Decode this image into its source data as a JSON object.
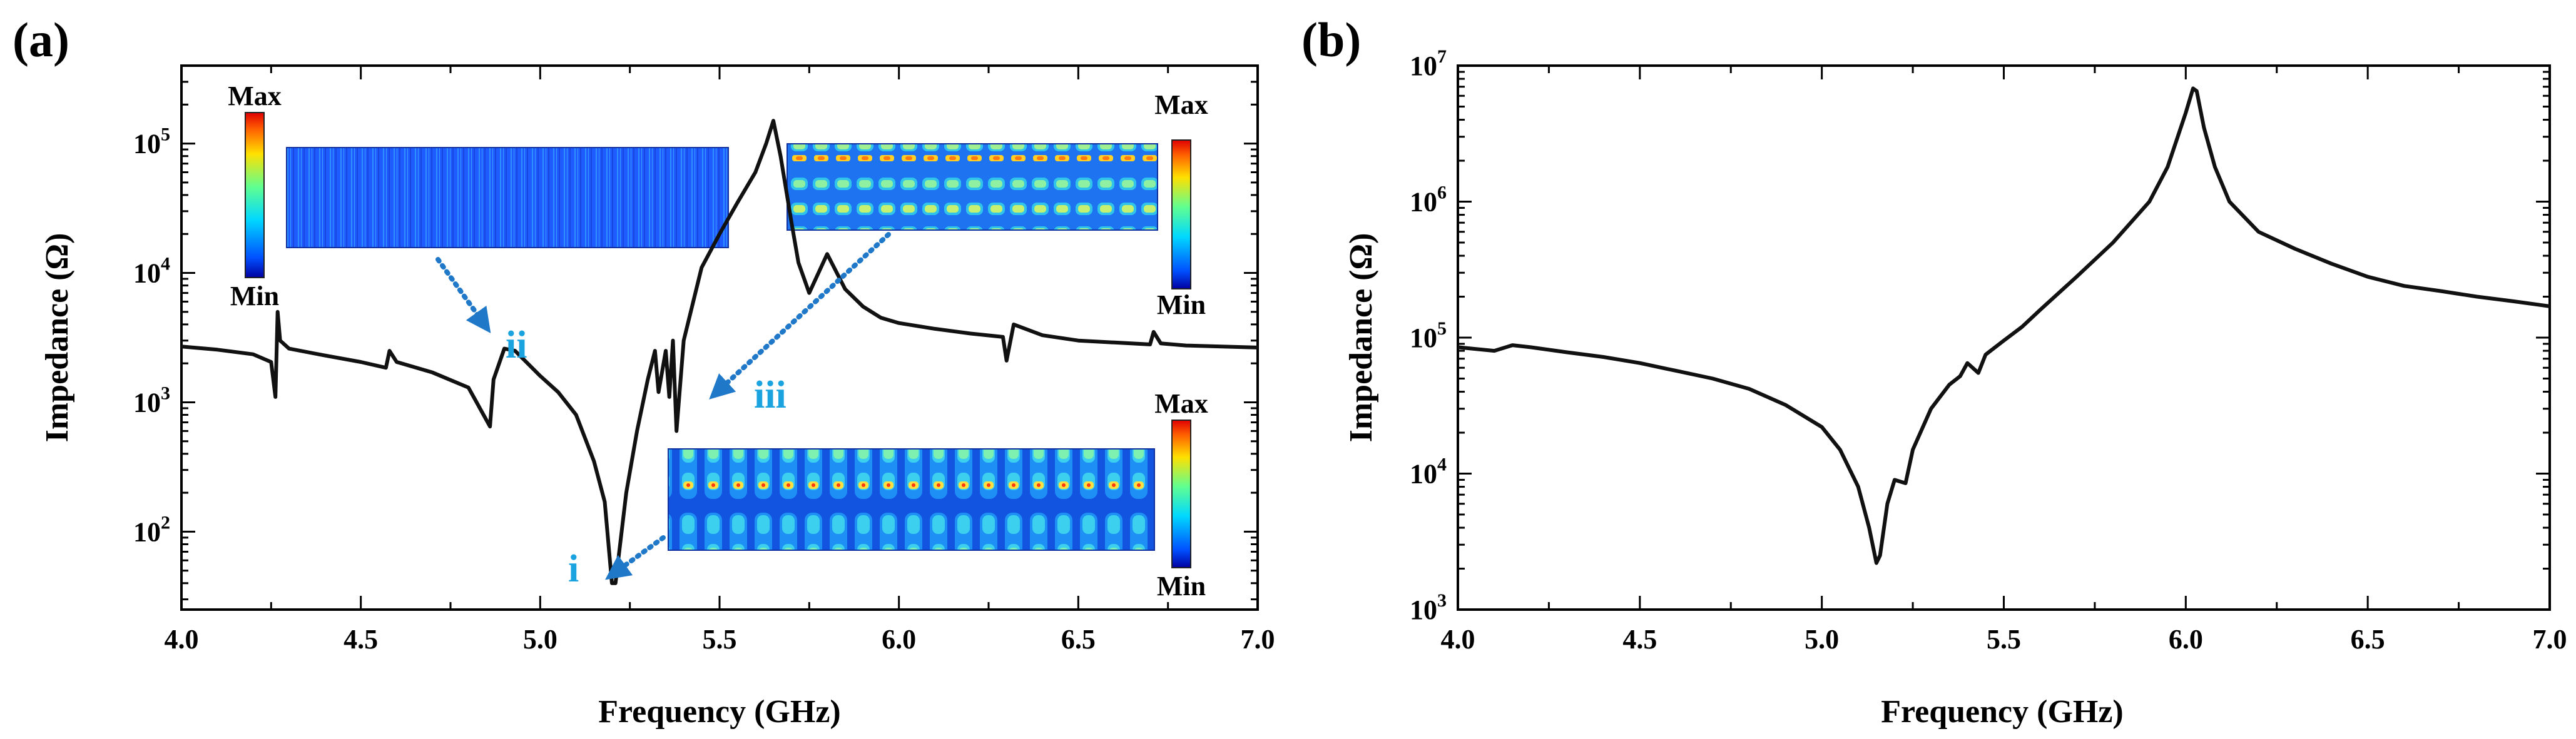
{
  "chart_data": [
    {
      "type": "line",
      "panel_label": "(a)",
      "xlabel": "Frequency (GHz)",
      "ylabel": "Impedance (Ω)",
      "y_scale": "log",
      "xlim": [
        4.0,
        7.0
      ],
      "ylim": [
        25,
        400000
      ],
      "x_ticks": [
        "4.0",
        "4.5",
        "5.0",
        "5.5",
        "6.0",
        "6.5",
        "7.0"
      ],
      "y_ticks": [
        {
          "base": "10",
          "exp": "2"
        },
        {
          "base": "10",
          "exp": "3"
        },
        {
          "base": "10",
          "exp": "4"
        },
        {
          "base": "10",
          "exp": "5"
        }
      ],
      "series": [
        {
          "name": "Impedance",
          "x": [
            4.0,
            4.1,
            4.2,
            4.25,
            4.262,
            4.268,
            4.275,
            4.3,
            4.4,
            4.5,
            4.57,
            4.58,
            4.6,
            4.7,
            4.8,
            4.86,
            4.87,
            4.9,
            4.93,
            5.0,
            5.05,
            5.1,
            5.15,
            5.18,
            5.2,
            5.21,
            5.24,
            5.27,
            5.3,
            5.32,
            5.33,
            5.35,
            5.36,
            5.37,
            5.38,
            5.4,
            5.45,
            5.5,
            5.55,
            5.6,
            5.63,
            5.65,
            5.67,
            5.7,
            5.72,
            5.75,
            5.8,
            5.85,
            5.9,
            5.95,
            6.0,
            6.1,
            6.2,
            6.29,
            6.3,
            6.32,
            6.4,
            6.5,
            6.6,
            6.7,
            6.71,
            6.73,
            6.8,
            6.9,
            7.0
          ],
          "y": [
            2700,
            2550,
            2350,
            2050,
            1100,
            5000,
            3000,
            2600,
            2300,
            2050,
            1850,
            2500,
            2050,
            1700,
            1300,
            650,
            1500,
            2600,
            2500,
            1600,
            1200,
            800,
            350,
            170,
            40,
            40,
            200,
            600,
            1500,
            2500,
            1200,
            2500,
            1100,
            3000,
            600,
            3000,
            11000,
            20000,
            35000,
            60000,
            100000,
            150000,
            80000,
            25000,
            12000,
            7000,
            14000,
            7500,
            5500,
            4500,
            4100,
            3700,
            3400,
            3200,
            2100,
            4000,
            3300,
            3000,
            2900,
            2800,
            3500,
            2850,
            2750,
            2700,
            2650
          ]
        }
      ],
      "annotations": [
        "i",
        "ii",
        "iii"
      ],
      "colorbar": {
        "max_label": "Max",
        "min_label": "Min"
      },
      "colors": {
        "line": "#111111",
        "annotation": "#1aa3df",
        "arrow": "#1f78c8"
      }
    },
    {
      "type": "line",
      "panel_label": "(b)",
      "xlabel": "Frequency (GHz)",
      "ylabel": "Impedance (Ω)",
      "y_scale": "log",
      "xlim": [
        4.0,
        7.0
      ],
      "ylim": [
        1000,
        10000000
      ],
      "x_ticks": [
        "4.0",
        "4.5",
        "5.0",
        "5.5",
        "6.0",
        "6.5",
        "7.0"
      ],
      "y_ticks": [
        {
          "base": "10",
          "exp": "3"
        },
        {
          "base": "10",
          "exp": "4"
        },
        {
          "base": "10",
          "exp": "5"
        },
        {
          "base": "10",
          "exp": "6"
        },
        {
          "base": "10",
          "exp": "7"
        }
      ],
      "series": [
        {
          "name": "Impedance",
          "x": [
            4.0,
            4.1,
            4.15,
            4.2,
            4.3,
            4.4,
            4.5,
            4.6,
            4.7,
            4.8,
            4.9,
            5.0,
            5.05,
            5.1,
            5.13,
            5.15,
            5.16,
            5.18,
            5.2,
            5.23,
            5.25,
            5.3,
            5.35,
            5.38,
            5.4,
            5.43,
            5.45,
            5.5,
            5.55,
            5.6,
            5.7,
            5.8,
            5.9,
            5.95,
            6.0,
            6.02,
            6.03,
            6.05,
            6.08,
            6.12,
            6.2,
            6.3,
            6.4,
            6.5,
            6.6,
            6.7,
            6.8,
            6.9,
            7.0
          ],
          "y": [
            85000,
            80000,
            88000,
            85000,
            78000,
            72000,
            65000,
            57000,
            50000,
            42000,
            32000,
            22000,
            15000,
            8000,
            4000,
            2200,
            2500,
            6000,
            9000,
            8500,
            15000,
            30000,
            45000,
            52000,
            65000,
            55000,
            75000,
            95000,
            120000,
            160000,
            280000,
            500000,
            1000000,
            1800000,
            4500000,
            6800000,
            6500000,
            3500000,
            1800000,
            1000000,
            600000,
            450000,
            350000,
            280000,
            240000,
            220000,
            200000,
            185000,
            170000
          ]
        }
      ],
      "colors": {
        "line": "#111111"
      }
    }
  ]
}
